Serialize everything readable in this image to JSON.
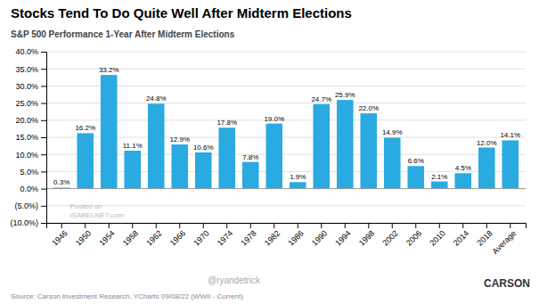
{
  "chart_data": {
    "type": "bar",
    "title": "Stocks Tend To Do Quite Well After Midterm Elections",
    "subtitle": "S&P 500 Performance 1-Year After Midterm Elections",
    "categories": [
      "1946",
      "1950",
      "1954",
      "1958",
      "1962",
      "1966",
      "1970",
      "1974",
      "1978",
      "1982",
      "1986",
      "1990",
      "1994",
      "1998",
      "2002",
      "2006",
      "2010",
      "2014",
      "2018",
      "Average"
    ],
    "values": [
      0.3,
      16.2,
      33.2,
      11.1,
      24.8,
      12.9,
      10.6,
      17.8,
      7.8,
      19.0,
      1.9,
      24.7,
      25.9,
      22.0,
      14.9,
      6.6,
      2.1,
      4.5,
      12.0,
      14.1
    ],
    "value_labels": [
      "0.3%",
      "16.2%",
      "33.2%",
      "11.1%",
      "24.8%",
      "12.9%",
      "10.6%",
      "17.8%",
      "7.8%",
      "19.0%",
      "1.9%",
      "24.7%",
      "25.9%",
      "22.0%",
      "14.9%",
      "6.6%",
      "2.1%",
      "4.5%",
      "12.0%",
      "14.1%"
    ],
    "color": "#29aae1",
    "ylim": [
      -10.0,
      40.0
    ],
    "yticks": [
      {
        "value": -10.0,
        "label": "(10.0%)"
      },
      {
        "value": -5.0,
        "label": "(5.0%)"
      },
      {
        "value": 0.0,
        "label": "0.0%"
      },
      {
        "value": 5.0,
        "label": "5.0%"
      },
      {
        "value": 10.0,
        "label": "10.0%"
      },
      {
        "value": 15.0,
        "label": "15.0%"
      },
      {
        "value": 20.0,
        "label": "20.0%"
      },
      {
        "value": 25.0,
        "label": "25.0%"
      },
      {
        "value": 30.0,
        "label": "30.0%"
      },
      {
        "value": 35.0,
        "label": "35.0%"
      },
      {
        "value": 40.0,
        "label": "40.0%"
      }
    ],
    "grid": true,
    "data_labels": true,
    "annotations": [
      "Source: Carson Investment Research, YCharts 09/08/22 (WWII - Current)",
      "@ryandetrick",
      "Posted on",
      "ISABELNET.com",
      "CARSON"
    ]
  }
}
